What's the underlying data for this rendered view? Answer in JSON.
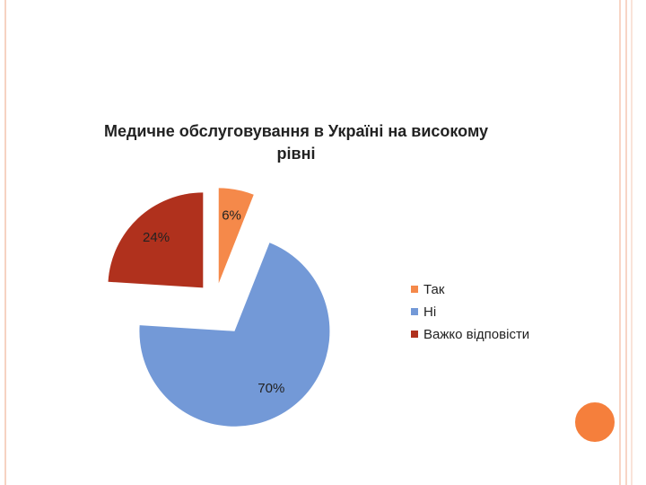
{
  "chart_data": {
    "type": "pie",
    "title": "Медичне обслуговування в Україні  на високому рівні",
    "categories": [
      "Так",
      "Ні",
      "Важко відповісти"
    ],
    "values": [
      6,
      70,
      24
    ],
    "value_labels": [
      "6%",
      "70%",
      "24%"
    ],
    "colors": [
      "#f5894a",
      "#7399d7",
      "#b0311d"
    ],
    "legend": "right"
  }
}
